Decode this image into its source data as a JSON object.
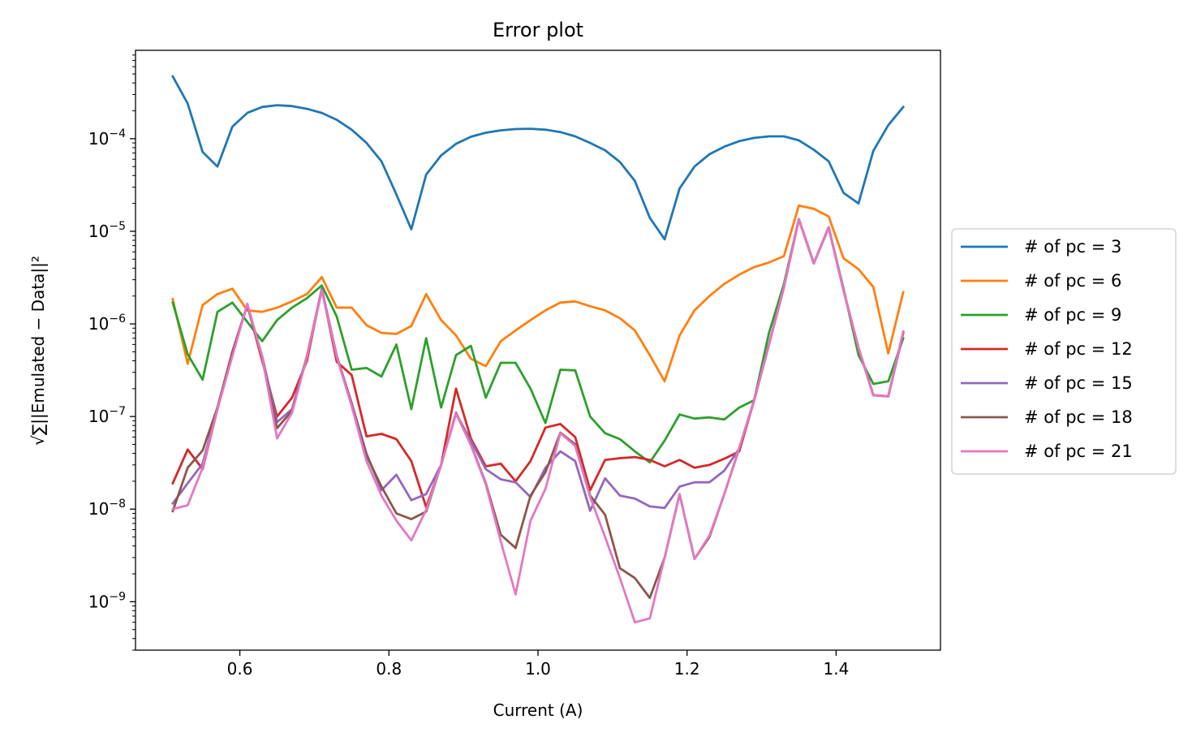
{
  "chart_data": {
    "type": "line",
    "title": "Error plot",
    "xlabel": "Current (A)",
    "ylabel": "√∑||Emulated − Data||²",
    "yscale": "log",
    "xlim": [
      0.46,
      1.54
    ],
    "ylim": [
      3e-10,
      0.0009
    ],
    "xticks": [
      0.6,
      0.8,
      1.0,
      1.2,
      1.4
    ],
    "xtick_labels": [
      "0.6",
      "0.8",
      "1.0",
      "1.2",
      "1.4"
    ],
    "yticks": [
      1e-09,
      1e-08,
      1e-07,
      1e-06,
      1e-05,
      0.0001
    ],
    "ytick_labels": [
      {
        "base": "10",
        "exp": "−9"
      },
      {
        "base": "10",
        "exp": "−8"
      },
      {
        "base": "10",
        "exp": "−7"
      },
      {
        "base": "10",
        "exp": "−6"
      },
      {
        "base": "10",
        "exp": "−5"
      },
      {
        "base": "10",
        "exp": "−4"
      }
    ],
    "grid": false,
    "legend_position": "center-right outside",
    "x": [
      0.51,
      0.53,
      0.55,
      0.57,
      0.59,
      0.61,
      0.63,
      0.65,
      0.67,
      0.69,
      0.71,
      0.73,
      0.75,
      0.77,
      0.79,
      0.81,
      0.83,
      0.85,
      0.87,
      0.89,
      0.91,
      0.93,
      0.95,
      0.97,
      0.99,
      1.01,
      1.03,
      1.05,
      1.07,
      1.09,
      1.11,
      1.13,
      1.15,
      1.17,
      1.19,
      1.21,
      1.23,
      1.25,
      1.27,
      1.29,
      1.31,
      1.33,
      1.35,
      1.37,
      1.39,
      1.41,
      1.43,
      1.45,
      1.47,
      1.49
    ],
    "series": [
      {
        "name": "# of pc = 3",
        "color": "#1f77b4",
        "values": [
          0.00047,
          0.00024,
          7.2e-05,
          5e-05,
          0.000135,
          0.00019,
          0.00022,
          0.00023,
          0.000225,
          0.00021,
          0.00019,
          0.00016,
          0.000125,
          9e-05,
          5.7e-05,
          2.5e-05,
          1.05e-05,
          4.1e-05,
          6.6e-05,
          8.8e-05,
          0.000105,
          0.000116,
          0.000123,
          0.000127,
          0.000128,
          0.000125,
          0.000118,
          0.000106,
          9e-05,
          7.5e-05,
          5.6e-05,
          3.5e-05,
          1.4e-05,
          8.2e-06,
          2.9e-05,
          5e-05,
          6.8e-05,
          8.2e-05,
          9.4e-05,
          0.000102,
          0.000106,
          0.000106,
          9.6e-05,
          7.6e-05,
          5.7e-05,
          2.6e-05,
          2e-05,
          7.4e-05,
          0.00014,
          0.00022
        ]
      },
      {
        "name": "# of pc = 6",
        "color": "#ff7f0e",
        "values": [
          1.85e-06,
          3.7e-07,
          1.6e-06,
          2.1e-06,
          2.4e-06,
          1.4e-06,
          1.35e-06,
          1.5e-06,
          1.75e-06,
          2.1e-06,
          3.2e-06,
          1.5e-06,
          1.5e-06,
          9.7e-07,
          8e-07,
          7.8e-07,
          9.5e-07,
          2.1e-06,
          1.1e-06,
          7.5e-07,
          4.2e-07,
          3.5e-07,
          6.5e-07,
          8.5e-07,
          1.1e-06,
          1.4e-06,
          1.7e-06,
          1.75e-06,
          1.55e-06,
          1.4e-06,
          1.15e-06,
          8.5e-07,
          4.6e-07,
          2.4e-07,
          7.5e-07,
          1.4e-06,
          2e-06,
          2.7e-06,
          3.4e-06,
          4.1e-06,
          4.6e-06,
          5.4e-06,
          1.9e-05,
          1.75e-05,
          1.45e-05,
          5.1e-06,
          3.9e-06,
          2.5e-06,
          4.8e-07,
          2.2e-06
        ]
      },
      {
        "name": "# of pc = 9",
        "color": "#2ca02c",
        "values": [
          1.7e-06,
          4.7e-07,
          2.5e-07,
          1.35e-06,
          1.7e-06,
          1.05e-06,
          6.5e-07,
          1.1e-06,
          1.5e-06,
          1.9e-06,
          2.6e-06,
          1.2e-06,
          3.2e-07,
          3.35e-07,
          2.7e-07,
          6e-07,
          1.2e-07,
          7e-07,
          1.25e-07,
          4.6e-07,
          5.8e-07,
          1.6e-07,
          3.8e-07,
          3.8e-07,
          2e-07,
          8.5e-08,
          3.2e-07,
          3.15e-07,
          1e-07,
          6.6e-08,
          5.7e-08,
          4.2e-08,
          3.2e-08,
          5.5e-08,
          1.05e-07,
          9.5e-08,
          9.8e-08,
          9.3e-08,
          1.25e-07,
          1.5e-07,
          8e-07,
          2.7e-06,
          1.35e-05,
          4.5e-06,
          1.1e-05,
          2.4e-06,
          4.6e-07,
          2.25e-07,
          2.4e-07,
          7e-07
        ]
      },
      {
        "name": "# of pc = 12",
        "color": "#d62728",
        "values": [
          1.9e-08,
          4.4e-08,
          2.7e-08,
          1.2e-07,
          5e-07,
          1.6e-06,
          4e-07,
          1e-07,
          1.6e-07,
          4e-07,
          2.4e-06,
          3.9e-07,
          2.8e-07,
          6.1e-08,
          6.5e-08,
          5.7e-08,
          3.3e-08,
          1.05e-08,
          3e-08,
          2e-07,
          5.8e-08,
          2.9e-08,
          3.1e-08,
          2e-08,
          3.3e-08,
          7.6e-08,
          8.3e-08,
          6e-08,
          1.6e-08,
          3.4e-08,
          3.55e-08,
          3.65e-08,
          3.4e-08,
          2.9e-08,
          3.4e-08,
          2.8e-08,
          3e-08,
          3.5e-08,
          4.2e-08,
          1.5e-07,
          6e-07,
          2.5e-06,
          1.35e-05,
          4.5e-06,
          1.1e-05,
          2.3e-06,
          5.5e-07,
          1.7e-07,
          1.65e-07,
          8e-07
        ]
      },
      {
        "name": "# of pc = 15",
        "color": "#9467bd",
        "values": [
          1.15e-08,
          1.9e-08,
          3.1e-08,
          1.25e-07,
          5e-07,
          1.6e-06,
          4.5e-07,
          8.7e-08,
          1.2e-07,
          4.5e-07,
          2.4e-06,
          4.5e-07,
          1.4e-07,
          4e-08,
          1.6e-08,
          2.35e-08,
          1.25e-08,
          1.45e-08,
          3e-08,
          1.07e-07,
          5.5e-08,
          2.7e-08,
          2.1e-08,
          1.95e-08,
          1.35e-08,
          2.8e-08,
          4.2e-08,
          3.3e-08,
          9.6e-09,
          2.15e-08,
          1.4e-08,
          1.3e-08,
          1.07e-08,
          1.03e-08,
          1.75e-08,
          1.95e-08,
          1.95e-08,
          2.6e-08,
          4.5e-08,
          1.5e-07,
          6e-07,
          2.5e-06,
          1.35e-05,
          4.5e-06,
          1.1e-05,
          2.3e-06,
          5.5e-07,
          1.7e-07,
          1.65e-07,
          8e-07
        ]
      },
      {
        "name": "# of pc = 18",
        "color": "#8c564b",
        "values": [
          9.5e-09,
          2.8e-08,
          4.3e-08,
          1.25e-07,
          5e-07,
          1.6e-06,
          4.3e-07,
          7.5e-08,
          1.15e-07,
          4.5e-07,
          2.3e-06,
          4.5e-07,
          1.35e-07,
          3.8e-08,
          1.75e-08,
          9e-09,
          7.8e-09,
          9.4e-09,
          3e-08,
          1.1e-07,
          5e-08,
          1.9e-08,
          5.3e-09,
          3.8e-09,
          1.4e-08,
          2.5e-08,
          6.7e-08,
          5e-08,
          1.4e-08,
          8.7e-09,
          2.3e-09,
          1.8e-09,
          1.1e-09,
          3e-09,
          1.45e-08,
          2.9e-09,
          5e-09,
          1.45e-08,
          4.5e-08,
          1.5e-07,
          6e-07,
          2.5e-06,
          1.35e-05,
          4.5e-06,
          1.1e-05,
          2.3e-06,
          5.5e-07,
          1.7e-07,
          1.65e-07,
          8e-07
        ]
      },
      {
        "name": "# of pc = 21",
        "color": "#e377c2",
        "values": [
          1e-08,
          1.1e-08,
          2.8e-08,
          1.2e-07,
          4.5e-07,
          1.65e-06,
          4.4e-07,
          5.8e-08,
          1.1e-07,
          4.4e-07,
          2.3e-06,
          4.4e-07,
          1.3e-07,
          3.3e-08,
          1.4e-08,
          7.5e-09,
          4.6e-09,
          9.8e-09,
          3e-08,
          1.08e-07,
          4.9e-08,
          1.85e-08,
          4.5e-09,
          1.2e-09,
          7.5e-09,
          1.65e-08,
          6.6e-08,
          4.8e-08,
          1.35e-08,
          5e-09,
          1.8e-09,
          6e-10,
          6.6e-10,
          3e-09,
          1.45e-08,
          2.9e-09,
          5.2e-09,
          1.45e-08,
          4.6e-08,
          1.5e-07,
          6e-07,
          2.5e-06,
          1.35e-05,
          4.5e-06,
          1.1e-05,
          2.3e-06,
          5.5e-07,
          1.7e-07,
          1.65e-07,
          8.3e-07
        ]
      }
    ]
  }
}
